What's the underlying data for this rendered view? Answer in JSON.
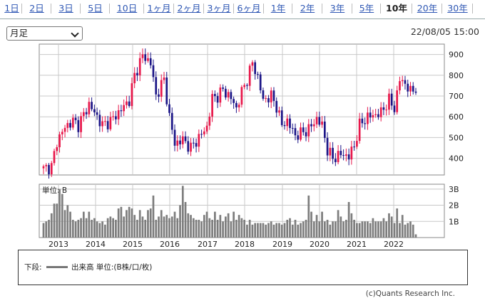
{
  "tabs": [
    "1日",
    "2日",
    "3日",
    "5日",
    "10日",
    "1ヶ月",
    "2ヶ月",
    "3ヶ月",
    "6ヶ月",
    "1年",
    "2年",
    "3年",
    "5年",
    "10年",
    "20年",
    "30年"
  ],
  "active_tab": "10年",
  "period_select": {
    "value": "月足"
  },
  "timestamp": "22/08/05 15:00",
  "colors": {
    "up": "#e8174a",
    "down": "#1b1587",
    "volume": "#7d7d7d",
    "grid": "#c8c8c8"
  },
  "chart_data": {
    "type": "candlestick",
    "x_labels": [
      "2013",
      "2014",
      "2015",
      "2016",
      "2017",
      "2018",
      "2019",
      "2020",
      "2021",
      "2022"
    ],
    "price_axis": {
      "ticks": [
        400,
        500,
        600,
        700,
        800,
        900
      ],
      "ylim": [
        320,
        950
      ]
    },
    "volume_axis": {
      "label": "単位: B",
      "ticks": [
        1,
        2,
        3
      ],
      "tick_labels": [
        "1B",
        "2B",
        "3B"
      ],
      "ylim": [
        0,
        3.3
      ]
    },
    "price_anchors": [
      [
        0,
        350
      ],
      [
        3,
        360
      ],
      [
        5,
        480
      ],
      [
        8,
        550
      ],
      [
        11,
        580
      ],
      [
        13,
        560
      ],
      [
        17,
        660
      ],
      [
        19,
        620
      ],
      [
        22,
        560
      ],
      [
        25,
        580
      ],
      [
        28,
        620
      ],
      [
        32,
        680
      ],
      [
        34,
        800
      ],
      [
        37,
        895
      ],
      [
        40,
        860
      ],
      [
        42,
        700
      ],
      [
        45,
        780
      ],
      [
        47,
        600
      ],
      [
        49,
        470
      ],
      [
        52,
        490
      ],
      [
        55,
        450
      ],
      [
        58,
        500
      ],
      [
        61,
        550
      ],
      [
        63,
        690
      ],
      [
        65,
        700
      ],
      [
        67,
        730
      ],
      [
        70,
        690
      ],
      [
        72,
        640
      ],
      [
        74,
        720
      ],
      [
        76,
        780
      ],
      [
        78,
        860
      ],
      [
        80,
        790
      ],
      [
        82,
        680
      ],
      [
        85,
        700
      ],
      [
        87,
        650
      ],
      [
        89,
        560
      ],
      [
        91,
        580
      ],
      [
        94,
        510
      ],
      [
        96,
        520
      ],
      [
        99,
        540
      ],
      [
        102,
        590
      ],
      [
        104,
        560
      ],
      [
        106,
        440
      ],
      [
        108,
        400
      ],
      [
        111,
        420
      ],
      [
        114,
        410
      ],
      [
        116,
        460
      ],
      [
        118,
        560
      ],
      [
        121,
        600
      ],
      [
        124,
        610
      ],
      [
        126,
        620
      ],
      [
        129,
        680
      ],
      [
        131,
        640
      ],
      [
        133,
        780
      ],
      [
        135,
        760
      ],
      [
        137,
        720
      ],
      [
        139,
        740
      ],
      [
        140,
        720
      ]
    ],
    "volume_values": [
      0.9,
      1.0,
      1.1,
      1.5,
      2.1,
      2.1,
      3.0,
      2.7,
      1.7,
      2.0,
      1.6,
      1.1,
      1.0,
      1.1,
      1.2,
      1.6,
      1.2,
      1.6,
      1.1,
      1.2,
      1.0,
      0.9,
      1.0,
      0.8,
      1.2,
      1.3,
      1.2,
      1.1,
      1.8,
      1.9,
      1.3,
      1.7,
      1.9,
      1.8,
      1.4,
      1.1,
      1.7,
      1.3,
      1.1,
      1.7,
      1.8,
      2.6,
      1.1,
      1.3,
      1.7,
      1.3,
      1.4,
      1.2,
      1.3,
      1.6,
      1.2,
      2.0,
      3.2,
      2.2,
      1.5,
      1.4,
      1.2,
      1.1,
      1.1,
      1.0,
      1.4,
      1.6,
      1.2,
      1.1,
      1.6,
      1.1,
      1.4,
      1.0,
      1.3,
      1.5,
      1.0,
      1.6,
      1.1,
      1.4,
      1.2,
      1.1,
      0.8,
      1.1,
      0.8,
      0.9,
      0.9,
      0.9,
      0.9,
      0.8,
      0.9,
      1.0,
      0.8,
      0.9,
      0.9,
      0.8,
      0.9,
      1.1,
      1.2,
      0.8,
      1.1,
      0.8,
      0.9,
      1.0,
      1.1,
      2.6,
      1.6,
      1.0,
      1.4,
      1.0,
      1.6,
      1.0,
      1.1,
      0.8,
      1.0,
      1.0,
      1.7,
      1.3,
      1.0,
      1.1,
      2.2,
      1.5,
      1.1,
      0.9,
      0.9,
      1.0,
      1.0,
      1.0,
      0.9,
      1.2,
      1.0,
      1.0,
      1.0,
      1.2,
      1.0,
      1.5,
      1.3,
      0.9,
      1.8,
      0.9,
      1.4,
      0.8,
      0.9,
      1.0,
      0.8,
      0.2
    ],
    "legend": {
      "prefix": "下段:",
      "series": "出来高 単位:(B株/口/枚)"
    }
  },
  "footer": {
    "copyright": "(c)Quants Research Inc."
  }
}
